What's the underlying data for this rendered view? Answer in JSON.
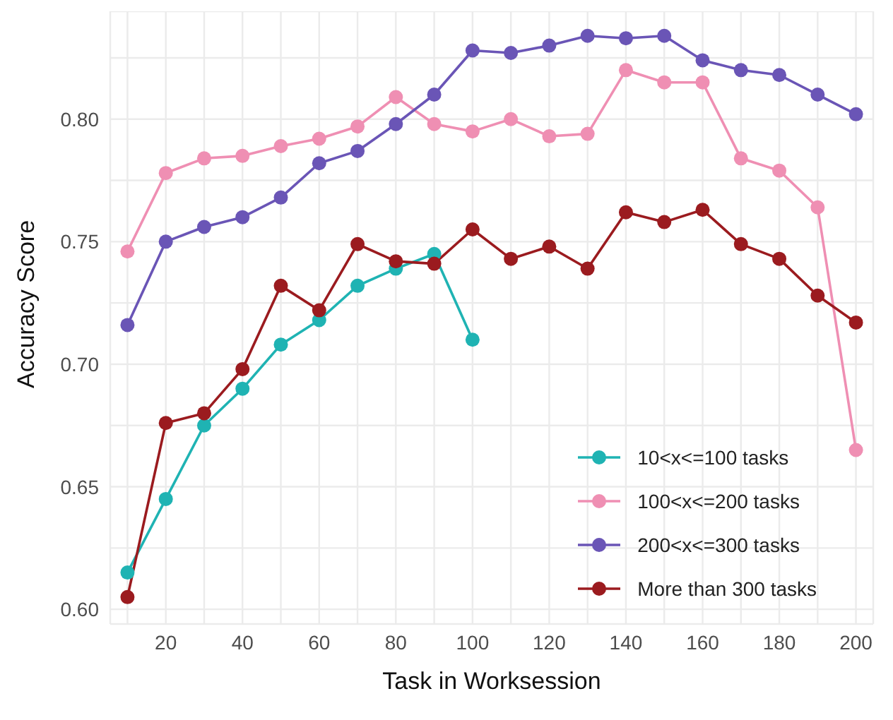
{
  "chart_data": {
    "type": "line",
    "xlabel": "Task in Worksession",
    "ylabel": "Accuracy Score",
    "x": [
      10,
      20,
      30,
      40,
      50,
      60,
      70,
      80,
      90,
      100,
      110,
      120,
      130,
      140,
      150,
      160,
      170,
      180,
      190,
      200
    ],
    "series": [
      {
        "name": "10<x<=100 tasks",
        "color": "#1fb3b3",
        "values": [
          0.615,
          0.645,
          0.675,
          0.69,
          0.708,
          0.718,
          0.732,
          0.739,
          0.745,
          0.71,
          null,
          null,
          null,
          null,
          null,
          null,
          null,
          null,
          null,
          null
        ]
      },
      {
        "name": "100<x<=200 tasks",
        "color": "#ef8fb3",
        "values": [
          0.746,
          0.778,
          0.784,
          0.785,
          0.789,
          0.792,
          0.797,
          0.809,
          0.798,
          0.795,
          0.8,
          0.793,
          0.794,
          0.82,
          0.815,
          0.815,
          0.784,
          0.779,
          0.764,
          0.665
        ]
      },
      {
        "name": "200<x<=300 tasks",
        "color": "#6a55b6",
        "values": [
          0.716,
          0.75,
          0.756,
          0.76,
          0.768,
          0.782,
          0.787,
          0.798,
          0.81,
          0.828,
          0.827,
          0.83,
          0.834,
          0.833,
          0.834,
          0.824,
          0.82,
          0.818,
          0.81,
          0.802
        ]
      },
      {
        "name": "More than 300 tasks",
        "color": "#9b1b1f",
        "values": [
          0.605,
          0.676,
          0.68,
          0.698,
          0.732,
          0.722,
          0.749,
          0.742,
          0.741,
          0.755,
          0.743,
          0.748,
          0.739,
          0.762,
          0.758,
          0.763,
          0.749,
          0.743,
          0.728,
          0.717
        ]
      }
    ],
    "xlim": [
      5.5,
      204.5
    ],
    "xticks": [
      {
        "value": 10,
        "label": null
      },
      20,
      {
        "value": 30,
        "label": null
      },
      40,
      {
        "value": 50,
        "label": null
      },
      60,
      {
        "value": 70,
        "label": null
      },
      80,
      {
        "value": 90,
        "label": null
      },
      100,
      {
        "value": 110,
        "label": null
      },
      120,
      {
        "value": 130,
        "label": null
      },
      140,
      {
        "value": 150,
        "label": null
      },
      160,
      {
        "value": 170,
        "label": null
      },
      180,
      {
        "value": 190,
        "label": null
      },
      200
    ],
    "ylim": [
      0.594,
      0.844
    ],
    "yticks": [
      {
        "value": 0.6,
        "label": "0.60"
      },
      {
        "value": 0.625,
        "label": null
      },
      {
        "value": 0.65,
        "label": "0.65"
      },
      {
        "value": 0.675,
        "label": null
      },
      {
        "value": 0.7,
        "label": "0.70"
      },
      {
        "value": 0.725,
        "label": null
      },
      {
        "value": 0.75,
        "label": "0.75"
      },
      {
        "value": 0.775,
        "label": null
      },
      {
        "value": 0.8,
        "label": "0.80"
      },
      {
        "value": 0.825,
        "label": null
      }
    ],
    "grid": true,
    "legend": "bottom right",
    "marker": "circle",
    "line_style": "solid"
  }
}
